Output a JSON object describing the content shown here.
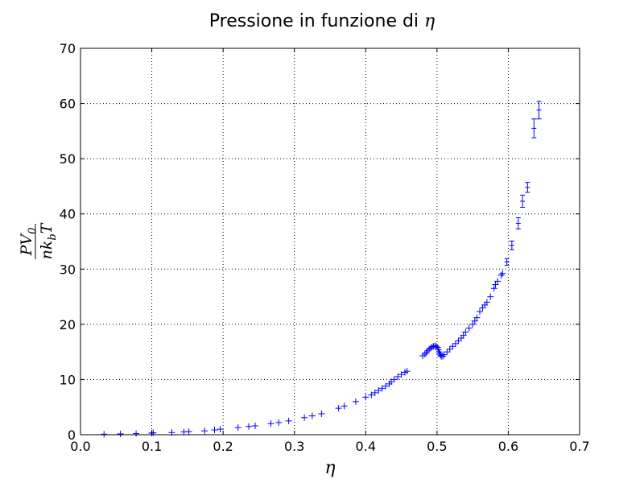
{
  "chart_data": {
    "type": "scatter",
    "title": "Pressione in funzione di η",
    "xlabel": "η",
    "ylabel": "PV₀ / nk_b T",
    "ylabel_parts": {
      "numerator": "PV",
      "numerator_sub": "0",
      "denominator": "nk",
      "denominator_sub": "b",
      "denominator_tail": "T"
    },
    "xlim": [
      0.0,
      0.7
    ],
    "ylim": [
      0,
      70
    ],
    "xticks": [
      "0.0",
      "0.1",
      "0.2",
      "0.3",
      "0.4",
      "0.5",
      "0.6",
      "0.7"
    ],
    "yticks": [
      "0",
      "10",
      "20",
      "30",
      "40",
      "50",
      "60",
      "70"
    ],
    "grid": true,
    "legend": "none",
    "marker": "+",
    "color": "#0000ff",
    "x": [
      0.033,
      0.056,
      0.078,
      0.1,
      0.102,
      0.128,
      0.145,
      0.152,
      0.174,
      0.188,
      0.196,
      0.221,
      0.236,
      0.245,
      0.267,
      0.278,
      0.292,
      0.314,
      0.325,
      0.338,
      0.362,
      0.37,
      0.386,
      0.4,
      0.408,
      0.413,
      0.418,
      0.423,
      0.428,
      0.433,
      0.436,
      0.44,
      0.445,
      0.45,
      0.455,
      0.458,
      0.48,
      0.483,
      0.485,
      0.487,
      0.489,
      0.491,
      0.493,
      0.495,
      0.497,
      0.499,
      0.501,
      0.502,
      0.503,
      0.504,
      0.505,
      0.506,
      0.508,
      0.51,
      0.514,
      0.518,
      0.522,
      0.526,
      0.53,
      0.534,
      0.537,
      0.54,
      0.545,
      0.55,
      0.553,
      0.556,
      0.56,
      0.564,
      0.567,
      0.57,
      0.575,
      0.58,
      0.582,
      0.585,
      0.59,
      0.592
    ],
    "y": [
      0.1,
      0.15,
      0.2,
      0.3,
      0.35,
      0.4,
      0.5,
      0.55,
      0.7,
      0.85,
      1.0,
      1.3,
      1.5,
      1.6,
      2.0,
      2.2,
      2.5,
      3.1,
      3.4,
      3.8,
      4.8,
      5.2,
      6.0,
      6.8,
      7.2,
      7.6,
      8.0,
      8.4,
      8.8,
      9.2,
      9.6,
      10.0,
      10.5,
      10.9,
      11.3,
      11.5,
      14.3,
      14.6,
      14.9,
      15.2,
      15.5,
      15.7,
      15.9,
      16.0,
      16.1,
      16.0,
      15.8,
      15.4,
      15.0,
      14.7,
      14.4,
      14.2,
      14.2,
      14.5,
      15.0,
      15.5,
      16.0,
      16.5,
      17.0,
      17.5,
      18.0,
      18.6,
      19.3,
      20.0,
      20.6,
      21.2,
      22.3,
      23.0,
      23.5,
      24.0,
      25.0,
      26.5,
      27.2,
      27.8,
      28.9,
      29.2
    ],
    "errorbar_x": [
      0.598,
      0.605,
      0.614,
      0.62,
      0.627,
      0.636,
      0.643
    ],
    "errorbar_y": [
      31.3,
      34.3,
      38.3,
      42.3,
      44.8,
      55.5,
      58.8
    ],
    "errorbar_err": [
      0.6,
      0.8,
      1.0,
      1.1,
      0.9,
      1.7,
      1.6
    ]
  }
}
